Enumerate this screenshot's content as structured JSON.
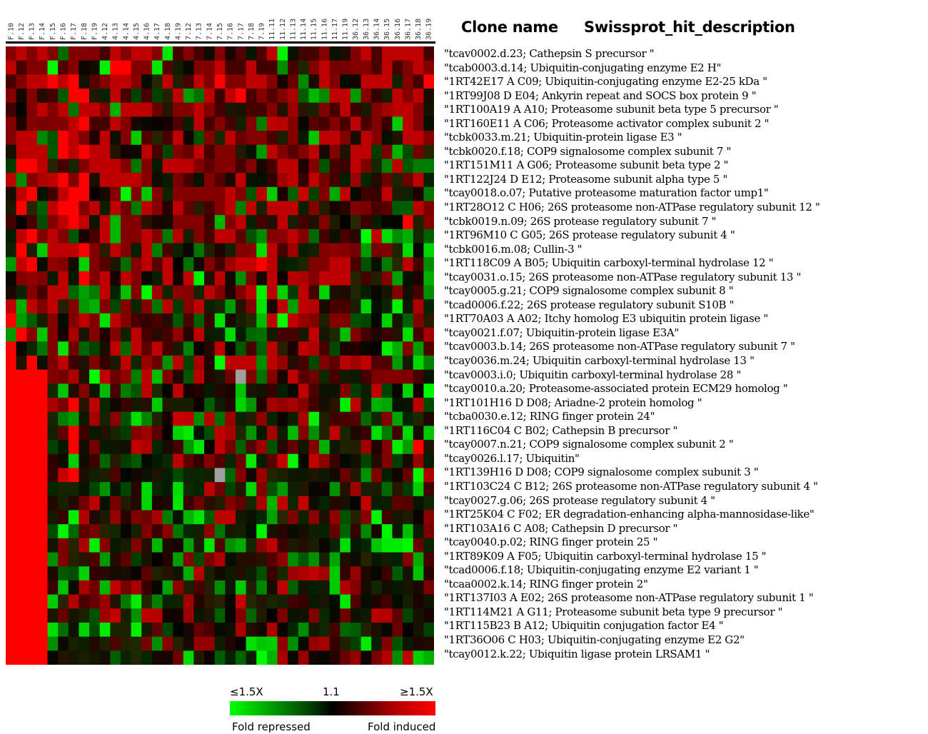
{
  "chart_data": {
    "type": "heatmap",
    "title": "",
    "column_labels": [
      "F.10",
      "F.12",
      "F.13",
      "F.14",
      "F.15",
      "F.16",
      "F.17",
      "F.18",
      "F.19",
      "4.12",
      "4.13",
      "4.14",
      "4.15",
      "4.16",
      "4.17",
      "4.18",
      "4.19",
      "7.12",
      "7.13",
      "7.14",
      "7.15",
      "7.16",
      "7.17",
      "7.18",
      "7.19",
      "11.11",
      "11.12",
      "11.13",
      "11.14",
      "11.15",
      "11.16",
      "11.17",
      "11.19",
      "36.12",
      "36.13",
      "36.14",
      "36.15",
      "36.16",
      "36.17",
      "36.18",
      "36.19"
    ],
    "header": {
      "clone_name": "Clone name",
      "description": "Swissprot_hit_description"
    },
    "rows": [
      "\"tcav0002.d.23; Cathepsin S precursor \"",
      "\"tcab0003.d.14;  Ubiquitin-conjugating enzyme E2 H\"",
      "\"1RT42E17 A C09; Ubiquitin-conjugating enzyme E2-25 kDa \"",
      "\"1RT99J08 D E04; Ankyrin repeat and SOCS box protein 9 \"",
      "\"1RT100A19 A A10; Proteasome subunit beta type 5 precursor \"",
      "\"1RT160E11 A C06; Proteasome activator complex subunit 2 \"",
      "\"tcbk0033.m.21; Ubiquitin-protein ligase E3 \"",
      "\"tcbk0020.f.18; COP9 signalosome complex subunit 7 \"",
      "\"1RT151M11 A G06; Proteasome subunit beta type 2 \"",
      "\"1RT122J24 D E12; Proteasome subunit alpha type 5 \"",
      "\"tcay0018.o.07; Putative proteasome maturation factor ump1\"",
      "\"1RT28O12 C H06; 26S proteasome non-ATPase regulatory subunit 12 \"",
      "\"tcbk0019.n.09; 26S protease regulatory subunit 7 \"",
      "\"1RT96M10 C G05; 26S protease regulatory subunit 4 \"",
      "\"tcbk0016.m.08; Cullin-3 \"",
      "\"1RT118C09 A B05; Ubiquitin carboxyl-terminal hydrolase 12 \"",
      "\"tcay0031.o.15; 26S proteasome non-ATPase regulatory subunit 13 \"",
      "\"tcay0005.g.21; COP9 signalosome complex subunit 8 \"",
      "\"tcad0006.f.22; 26S protease regulatory subunit S10B \"",
      "\"1RT70A03 A A02; Itchy homolog E3 ubiquitin protein ligase \"",
      "\"tcay0021.f.07; Ubiquitin-protein ligase E3A\"",
      "\"tcav0003.b.14; 26S proteasome non-ATPase regulatory subunit 7 \"",
      "\"tcay0036.m.24; Ubiquitin carboxyl-terminal hydrolase 13 \"",
      "\"tcav0003.i.0;  Ubiquitin carboxyl-terminal hydrolase 28 \"",
      "\"tcay0010.a.20; Proteasome-associated protein ECM29 homolog \"",
      "\"1RT101H16 D D08; Ariadne-2 protein homolog \"",
      "\"tcba0030.e.12; RING finger protein 24\"",
      "\"1RT116C04 C B02; Cathepsin B precursor \"",
      "\"tcay0007.n.21; COP9 signalosome complex subunit 2 \"",
      "\"tcay0026.l.17; Ubiquitin\"",
      "\"1RT139H16 D D08; COP9 signalosome complex subunit 3 \"",
      "\"1RT103C24 C B12; 26S proteasome non-ATPase regulatory subunit 4 \"",
      "\"tcay0027.g.06; 26S protease regulatory subunit 4 \"",
      "\"1RT25K04 C F02;  ER degradation-enhancing alpha-mannosidase-like\"",
      "\"1RT103A16 C A08; Cathepsin D precursor \"",
      "\"tcay0040.p.02; RING finger protein 25 \"",
      "\"1RT89K09 A F05;  Ubiquitin carboxyl-terminal hydrolase 15 \"",
      "\"tcad0006.f.18; Ubiquitin-conjugating enzyme E2 variant 1 \"",
      "\"tcaa0002.k.14; RING finger protein 2\"",
      "\"1RT137I03 A E02; 26S proteasome non-ATPase regulatory subunit 1 \"",
      "\"1RT114M21 A G11; Proteasome subunit beta type 9 precursor \"",
      "\"1RT115B23 B A12; Ubiquitin conjugation factor E4 \"",
      "\"1RT36O06 C H03; Ubiquitin-conjugating enzyme E2 G2\"",
      "\"tcay0012.k.22; Ubiquitin ligase protein LRSAM1 \""
    ],
    "values": [
      "Z2121Z11Z021221Z010Z1ZZZZ2ZZ001ZZ12022220",
      "2011ZZ1ZZZ3311ZZZZ112002Z0Z0Z12ZZ11020121",
      "0122323ZZ1221ZZ2Z021311221ZZZZ21ZZ222Z103",
      "1Z1Z0Z33ZZ20Z0ZZ2ZZ2Z2301Z1ZZZZ22Z1ZZZ12",
      "ZZ1212Z221Z222ZZ1121ZZZ001ZZZZ102ZZ1Z221",
      "1Z1Z11230021ZZZZZZZ010Z1Z2Z1ZZ01020ZZZ2Z",
      "122ZZ321Z2Z1ZZZ0ZZZ1Z2Z11ZZ1ZZ221Z2ZZZ221",
      "Z222Z3232ZZZZ20Z1Z2011ZZZ21Z12Z1Z22ZZZZZZ",
      "Z332Z0Z12221Z1Z2221Z1101Z022Z1Z0Z2ZZZ2ZZ",
      "2Z1Z23Z3Z22221ZZZ0Z1ZZ2ZZZZ2Z2Z0ZZZZZZZ2Z",
      "Z23ZZ233ZZ1Z1Z1Z1111121Z2ZZZZZ1Z2ZZZ2ZZZZ",
      "Z3ZZ23312Z2ZZ21Z2ZZ012Z2Z222Z1ZZZ1ZZZZZ2",
      "ZZ0Z1232Z2Z11ZZZ111ZZ12Z0Z2Z0Z1ZZZZZZZ3ZZ",
      "Z23121ZZ02Z1121ZZZ1022ZZZ1Z21Z0Z0ZZ2ZZZZ",
      "Z3ZZZ2231Z21Z2Z0ZZZZZZ1ZZ20ZZZ1Z1ZZZ1ZZZ",
      "ZZ3ZZ1ZZ1ZZZ12Z2ZZZ10ZZZ32ZZZ1Z220ZZZZ20",
      "Z1Z1Z2Z312Z21ZZZZ2ZZ2ZZ1Z2ZZZ1222Z0Z1ZZZ",
      "ZZ1022ZZZ2ZZ1ZZZZ1Z21Z12Z2ZZ20ZZZZZZZ1Z0",
      "2Z212Z1ZZ1Z1Z1Z2Z12ZZZZ1ZZ2Z2ZZ00ZZZZZZZ",
      "3ZZZ1Z121Z210ZZZZ0ZZZZZZZ2ZZZ1Z1ZZZZZZZ1",
      "Z3ZZ1ZZZ1Z1Z20Z0ZZ2ZZZZZZZ00Z2ZZZ1ZZZZZ0",
      "3ZZZ1ZZZZZ2Z2Z20ZZZZ2ZZ0ZZZZ2Z0ZZZZZZZ1Z",
      "3Z3ZZ2ZZ1ZZ2ZZZZ2ZZZZ2ZZZ2ZZ0ZZZZZ2ZZZZZ",
      "33331ZZZZ2ZZZ2ZZZZZZZZZ1Z1Z2ZZZ0ZZZZ1ZZZ",
      "3333ZZZZZZZZZ2ZZ2ZZZZZZZZZZZ2ZZZ1ZZZZZZZ",
      "3333ZZ3Z2ZZZZZZZZZZZZZZZZZZZ1ZZZZ2ZZZZZ2",
      "3333ZZZZZZZZZZZZZ2ZZZZZZZZZZZZZZZZZZ1ZZZ",
      "3333ZZ3ZZZZZ1ZZZZZZZ2ZZZZZZZ1ZZZZZZZZZZZ",
      "3333ZZ3ZZZZZ2ZZZZZZZ2ZZZZZZZZZZZZZZZZZZ3",
      "3333ZZZZZZZZZZZZ2ZZZZZZZZZZZZ2ZZZZZZ1ZZZ",
      "3333ZZ3ZZZZZZZZZZZZZZZ1ZZZZZZZZZZZZ1ZZZZ",
      "3333ZZZZZZZZZZZZZZZ2ZZZZ1ZZZZZZZZZZZZZZZ",
      "3333ZZZZ2ZZZZZZZZZZZZ1ZZZZ2ZZZZZZZZZZZZZ",
      "3333ZZZZZZZZZZZZZZZZ2ZZZZZZ1ZZZZZZZZZZZZ",
      "3333ZZZZZZZZZ1ZZZZZZZZZZZZZZZZZZZZZZZZZZ",
      "3333ZZZZZZZZ1ZZZZZZZZZZZZ2ZZZZZZZZZZZZZZ",
      "3333ZZZZZZZZZZZZZ1ZZZZZZZZZZZZZZZZZZZZZZ",
      "3333ZZZZZZZZZZZZZZZZZZZZZZZZZ2ZZZZZZZZZZ",
      "3333ZZZZZZZZZZZZZZZZZZZZZZ2ZZZZZZ1ZZZZZZ",
      "3333ZZZZZZZZZZZZZZZZZZZZZZZZZZZZZZZZZZZZ",
      "3333ZZZZZZZZZZZZZZZZZZ1ZZZZZZZZZZZZZZZZZ",
      "3333ZZZZZZZZZZZZZZZZZZZZZZZZZZZZZZZZZZZZ",
      "3333ZZZZZZZZZZZZZZZZZZZZZZZZZZZZZZZZZZZZ",
      "3333ZZZZZZZZZZZZZZZZZZZZZZZZZZZZZZZZZZZZ"
    ],
    "value_scale": "digits 0-3 = fold induced (red, 3 = strongest); letters Z = fold repressed (green); see color_scale",
    "missing_cells": [
      [
        23,
        22
      ],
      [
        30,
        20
      ]
    ],
    "color_scale": {
      "low_label": "≤1.5X",
      "mid_label": "1.1",
      "high_label": "≥1.5X",
      "low_color": "#00ff00",
      "mid_color": "#000000",
      "high_color": "#ff0000",
      "missing_color": "#a0a0a0",
      "left_caption": "Fold repressed",
      "right_caption": "Fold induced"
    }
  }
}
